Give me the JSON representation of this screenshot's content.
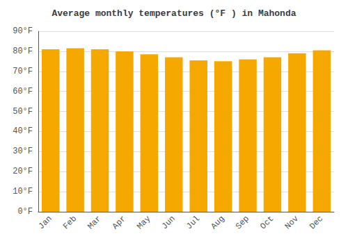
{
  "chart_data": {
    "type": "bar",
    "title": "Average monthly temperatures (°F ) in Mahonda",
    "categories": [
      "Jan",
      "Feb",
      "Mar",
      "Apr",
      "May",
      "Jun",
      "Jul",
      "Aug",
      "Sep",
      "Oct",
      "Nov",
      "Dec"
    ],
    "values": [
      81,
      81.5,
      81,
      80,
      78.5,
      77,
      75.5,
      75,
      76,
      77,
      79,
      80.5
    ],
    "color": "#F5A800",
    "ylim": [
      0,
      90
    ],
    "yticks": [
      {
        "value": 0,
        "label": "0°F"
      },
      {
        "value": 10,
        "label": "10°F"
      },
      {
        "value": 20,
        "label": "20°F"
      },
      {
        "value": 30,
        "label": "30°F"
      },
      {
        "value": 40,
        "label": "40°F"
      },
      {
        "value": 50,
        "label": "50°F"
      },
      {
        "value": 60,
        "label": "60°F"
      },
      {
        "value": 70,
        "label": "70°F"
      },
      {
        "value": 80,
        "label": "80°F"
      },
      {
        "value": 90,
        "label": "90°F"
      }
    ],
    "grid": true
  }
}
